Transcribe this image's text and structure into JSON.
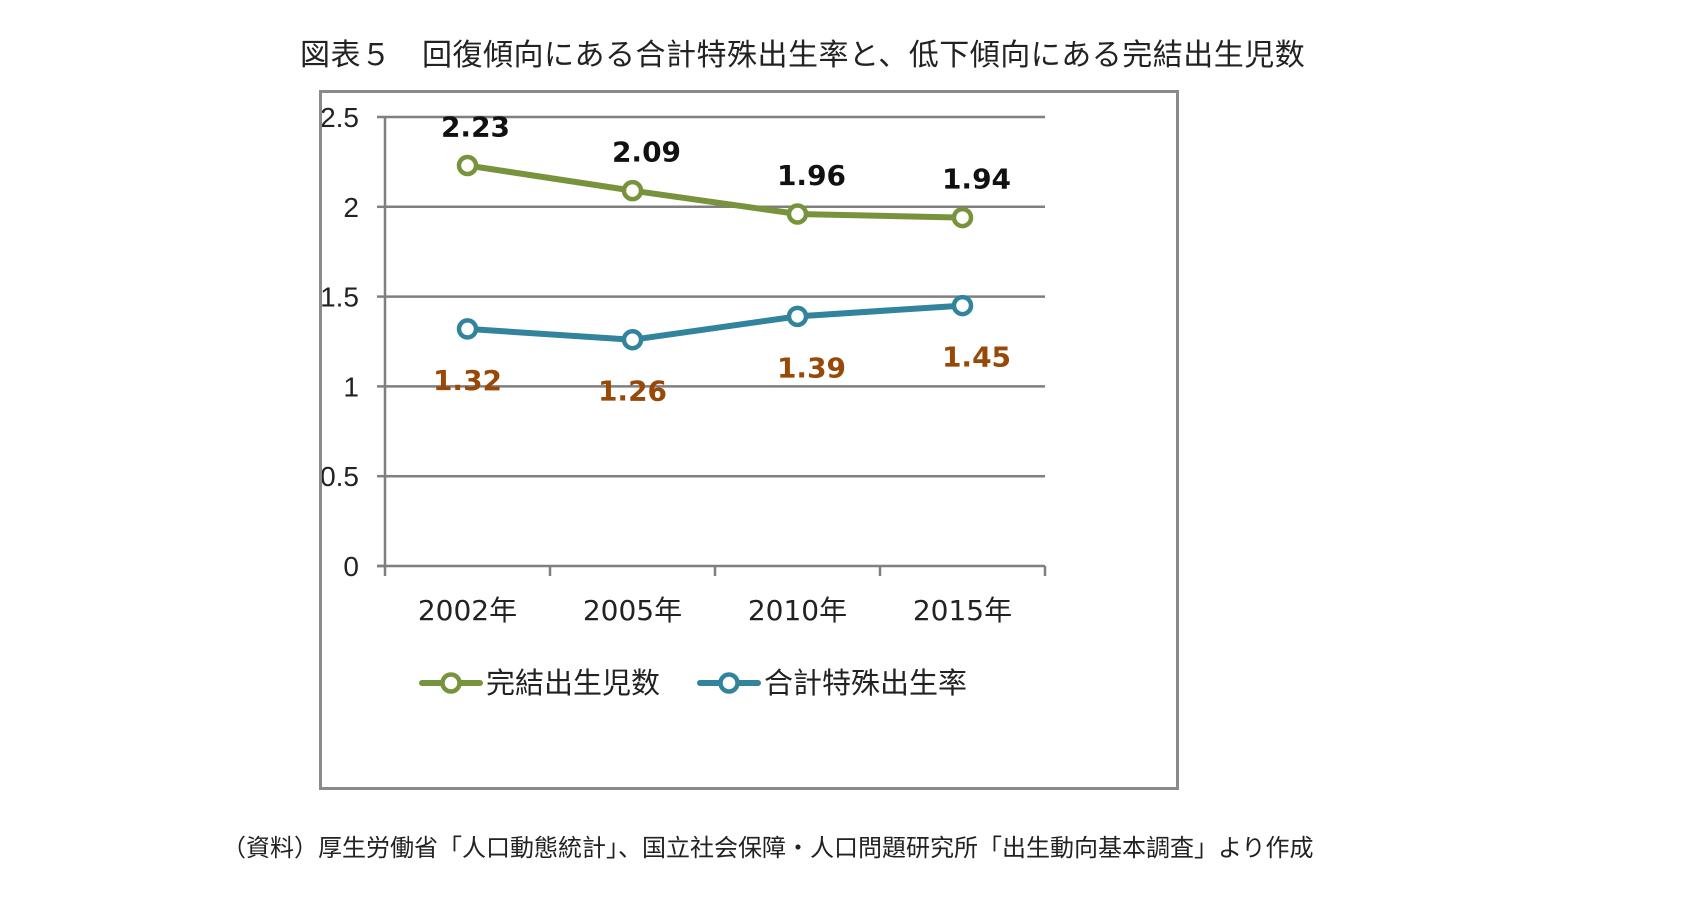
{
  "title": "図表５　回復傾向にある合計特殊出生率と、低下傾向にある完結出生児数",
  "source": "（資料）厚生労働省「人口動態統計」、国立社会保障・人口問題研究所「出生動向基本調査」より作成",
  "colors": {
    "series1": "#77933c",
    "series2": "#31849b",
    "label1": "#111111",
    "label2": "#984807",
    "grid": "#7f7f7f"
  },
  "chart_data": {
    "type": "line",
    "categories": [
      "2002年",
      "2005年",
      "2010年",
      "2015年"
    ],
    "ylim": [
      0,
      2.5
    ],
    "yticks": [
      "0",
      "0.5",
      "1",
      "1.5",
      "2",
      "2.5"
    ],
    "grid": true,
    "legend": "bottom",
    "series": [
      {
        "name": "完結出生児数",
        "values": [
          2.23,
          2.09,
          1.96,
          1.94
        ],
        "labels": [
          "2.23",
          "2.09",
          "1.96",
          "1.94"
        ],
        "marker": "circle-icon"
      },
      {
        "name": "合計特殊出生率",
        "values": [
          1.32,
          1.26,
          1.39,
          1.45
        ],
        "labels": [
          "1.32",
          "1.26",
          "1.39",
          "1.45"
        ],
        "marker": "circle-icon"
      }
    ]
  }
}
